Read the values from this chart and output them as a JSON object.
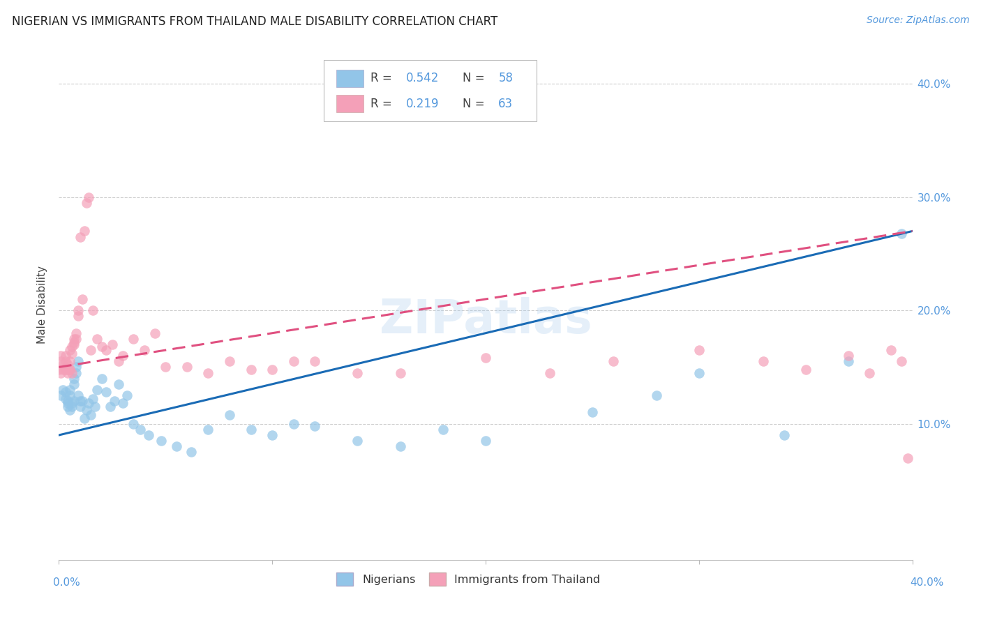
{
  "title": "NIGERIAN VS IMMIGRANTS FROM THAILAND MALE DISABILITY CORRELATION CHART",
  "source": "Source: ZipAtlas.com",
  "ylabel": "Male Disability",
  "xlim": [
    0.0,
    0.4
  ],
  "ylim": [
    -0.02,
    0.43
  ],
  "yticks": [
    0.1,
    0.2,
    0.3,
    0.4
  ],
  "xticks": [
    0.0,
    0.1,
    0.2,
    0.3,
    0.4
  ],
  "nigerians_R": 0.542,
  "nigerians_N": 58,
  "thailand_R": 0.219,
  "thailand_N": 63,
  "color_blue": "#92C5E8",
  "color_pink": "#F4A0B8",
  "line_blue": "#1A6BB5",
  "line_pink": "#E05080",
  "watermark": "ZIPatlas",
  "nigerians_x": [
    0.001,
    0.002,
    0.003,
    0.003,
    0.004,
    0.004,
    0.004,
    0.005,
    0.005,
    0.005,
    0.006,
    0.006,
    0.007,
    0.007,
    0.007,
    0.008,
    0.008,
    0.009,
    0.009,
    0.01,
    0.01,
    0.011,
    0.012,
    0.013,
    0.014,
    0.015,
    0.016,
    0.017,
    0.018,
    0.02,
    0.022,
    0.024,
    0.026,
    0.028,
    0.03,
    0.032,
    0.035,
    0.038,
    0.042,
    0.048,
    0.055,
    0.062,
    0.07,
    0.08,
    0.09,
    0.1,
    0.11,
    0.12,
    0.14,
    0.16,
    0.18,
    0.2,
    0.25,
    0.28,
    0.3,
    0.34,
    0.37,
    0.395
  ],
  "nigerians_y": [
    0.125,
    0.13,
    0.128,
    0.122,
    0.12,
    0.118,
    0.115,
    0.112,
    0.13,
    0.125,
    0.118,
    0.115,
    0.14,
    0.135,
    0.12,
    0.15,
    0.145,
    0.125,
    0.155,
    0.12,
    0.115,
    0.12,
    0.105,
    0.112,
    0.118,
    0.108,
    0.122,
    0.115,
    0.13,
    0.14,
    0.128,
    0.115,
    0.12,
    0.135,
    0.118,
    0.125,
    0.1,
    0.095,
    0.09,
    0.085,
    0.08,
    0.075,
    0.095,
    0.108,
    0.095,
    0.09,
    0.1,
    0.098,
    0.085,
    0.08,
    0.095,
    0.085,
    0.11,
    0.125,
    0.145,
    0.09,
    0.155,
    0.268
  ],
  "thailand_x": [
    0.001,
    0.002,
    0.002,
    0.003,
    0.003,
    0.003,
    0.004,
    0.004,
    0.004,
    0.005,
    0.005,
    0.005,
    0.005,
    0.006,
    0.006,
    0.006,
    0.007,
    0.007,
    0.007,
    0.008,
    0.008,
    0.009,
    0.009,
    0.01,
    0.011,
    0.012,
    0.013,
    0.014,
    0.015,
    0.016,
    0.018,
    0.02,
    0.022,
    0.025,
    0.028,
    0.03,
    0.035,
    0.04,
    0.045,
    0.05,
    0.06,
    0.07,
    0.08,
    0.09,
    0.1,
    0.11,
    0.12,
    0.14,
    0.16,
    0.2,
    0.23,
    0.26,
    0.3,
    0.33,
    0.35,
    0.37,
    0.38,
    0.39,
    0.395,
    0.398,
    0.0,
    0.001,
    0.001
  ],
  "thailand_y": [
    0.145,
    0.148,
    0.152,
    0.155,
    0.16,
    0.148,
    0.145,
    0.148,
    0.152,
    0.155,
    0.148,
    0.165,
    0.148,
    0.162,
    0.145,
    0.168,
    0.175,
    0.17,
    0.172,
    0.18,
    0.175,
    0.195,
    0.2,
    0.265,
    0.21,
    0.27,
    0.295,
    0.3,
    0.165,
    0.2,
    0.175,
    0.168,
    0.165,
    0.17,
    0.155,
    0.16,
    0.175,
    0.165,
    0.18,
    0.15,
    0.15,
    0.145,
    0.155,
    0.148,
    0.148,
    0.155,
    0.155,
    0.145,
    0.145,
    0.158,
    0.145,
    0.155,
    0.165,
    0.155,
    0.148,
    0.16,
    0.145,
    0.165,
    0.155,
    0.07,
    0.148,
    0.155,
    0.16
  ]
}
